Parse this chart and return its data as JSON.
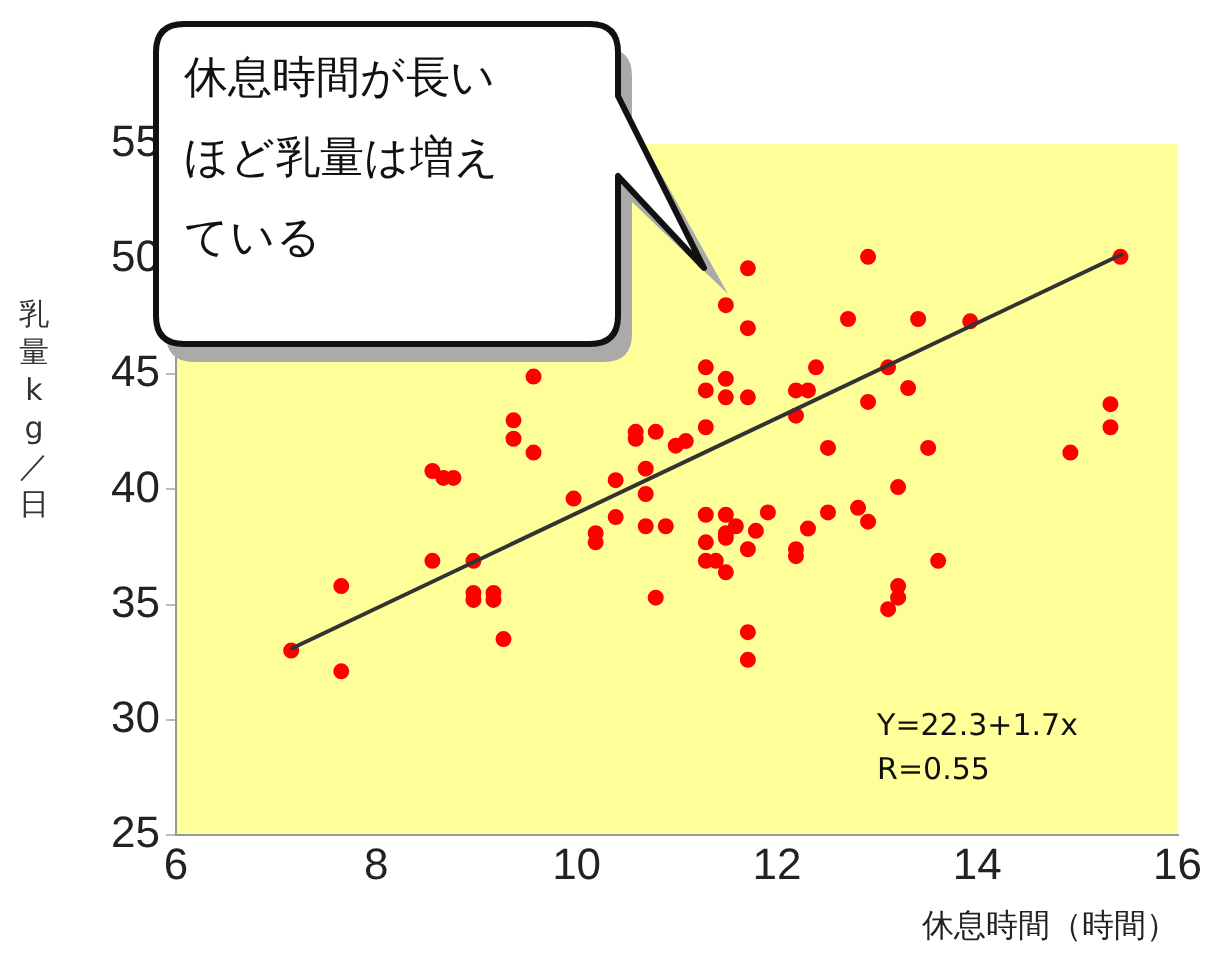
{
  "chart_data": {
    "type": "scatter",
    "xlabel": "休息時間（時間）",
    "ylabel": "乳量kg／日",
    "annotations": [
      "休息時間が長いほど乳量は増えている",
      "Y=22.3+1.7x",
      "R=0.55"
    ],
    "xlim": [
      6,
      16
    ],
    "ylim": [
      25,
      55
    ],
    "xticks": [
      6,
      8,
      10,
      12,
      14,
      16
    ],
    "yticks": [
      25,
      30,
      35,
      40,
      45,
      50,
      55
    ],
    "grid": false,
    "legend": false,
    "marker": "circle",
    "series": [
      {
        "color": "#ff0000",
        "x": [
          9.57,
          9.37,
          9.37,
          9.57,
          8.56,
          8.67,
          8.77,
          9.97,
          10.39,
          10.39,
          10.19,
          10.19,
          8.56,
          8.97,
          8.97,
          8.97,
          9.17,
          9.17,
          7.65,
          9.27,
          7.15,
          7.65,
          11.71,
          12.91,
          11.49,
          11.71,
          12.71,
          13.41,
          11.29,
          11.29,
          11.49,
          11.49,
          11.71,
          12.39,
          12.19,
          12.31,
          12.19,
          13.11,
          13.31,
          12.91,
          10.59,
          10.59,
          10.79,
          10.99,
          11.09,
          11.29,
          12.51,
          13.51,
          10.69,
          10.69,
          10.69,
          10.89,
          13.21,
          11.29,
          11.49,
          11.59,
          11.49,
          11.49,
          11.91,
          11.79,
          11.29,
          11.29,
          11.39,
          11.49,
          11.71,
          12.51,
          12.81,
          12.91,
          12.31,
          12.19,
          12.19,
          10.79,
          11.71,
          11.71,
          13.61,
          13.21,
          13.21,
          13.11,
          13.93,
          15.43,
          15.33,
          15.33,
          14.93
        ],
        "values": [
          44.9,
          43.0,
          42.2,
          41.6,
          40.8,
          40.5,
          40.5,
          39.6,
          40.4,
          38.8,
          38.1,
          37.7,
          36.9,
          36.9,
          35.5,
          35.2,
          35.5,
          35.2,
          35.8,
          33.5,
          33.0,
          32.1,
          49.6,
          50.1,
          48.0,
          47.0,
          47.4,
          47.4,
          45.3,
          44.3,
          44.8,
          44.0,
          44.0,
          45.3,
          44.3,
          44.3,
          43.2,
          45.3,
          44.4,
          43.8,
          42.5,
          42.2,
          42.5,
          41.9,
          42.1,
          42.7,
          41.8,
          41.8,
          40.9,
          39.8,
          38.4,
          38.4,
          40.1,
          38.9,
          38.9,
          38.4,
          38.1,
          37.9,
          39.0,
          38.2,
          37.7,
          36.9,
          36.9,
          36.4,
          37.4,
          39.0,
          39.2,
          38.6,
          38.3,
          37.4,
          37.1,
          35.3,
          33.8,
          32.6,
          36.9,
          35.8,
          35.3,
          34.8,
          47.3,
          50.1,
          43.7,
          42.7,
          41.6
        ]
      },
      {
        "type": "line",
        "color": "#333333",
        "marker": "none",
        "line_style": "solid",
        "x": [
          7.16,
          15.44
        ],
        "values": [
          33.1,
          50.2
        ]
      }
    ]
  }
}
